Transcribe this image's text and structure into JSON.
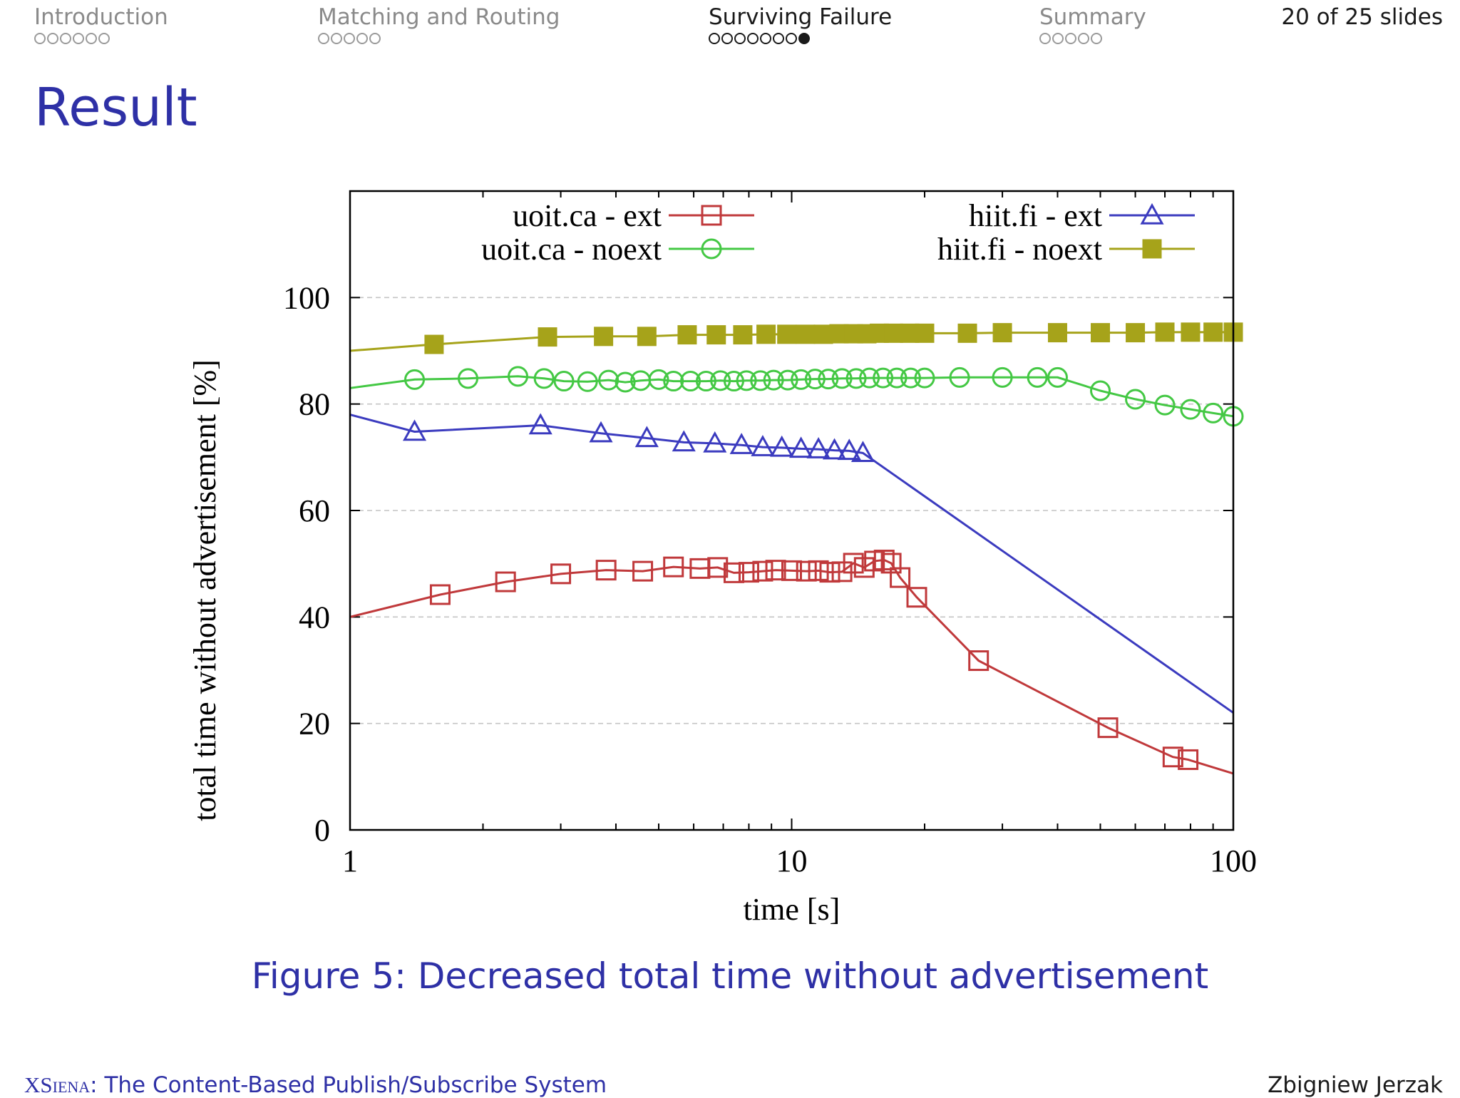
{
  "nav": {
    "sections": [
      {
        "label": "Introduction",
        "dots": 6,
        "current": -1
      },
      {
        "label": "Matching and Routing",
        "dots": 5,
        "current": -1
      },
      {
        "label": "Surviving Failure",
        "dots": 8,
        "current": 7
      },
      {
        "label": "Summary",
        "dots": 5,
        "current": -1
      }
    ],
    "active_index": 2,
    "slide_counter": "20 of 25 slides"
  },
  "slide_title": "Result",
  "caption": "Figure 5: Decreased total time without advertisement",
  "footer": {
    "left_brand": "XSiena",
    "left_rest": ": The Content-Based Publish/Subscribe System",
    "right": "Zbigniew Jerzak"
  },
  "chart_data": {
    "type": "line",
    "title": "",
    "xlabel": "time [s]",
    "ylabel": "total time without advertisement [%]",
    "xscale": "log",
    "xlim": [
      1,
      100
    ],
    "ylim": [
      0,
      120
    ],
    "x_ticks": [
      1,
      10,
      100
    ],
    "y_ticks": [
      0,
      20,
      40,
      60,
      80,
      100
    ],
    "grid": "horizontal dashed",
    "legend": "top, two columns",
    "series": [
      {
        "name": "uoit.ca - ext",
        "color": "#c0393b",
        "marker": "open-square",
        "x": [
          1,
          1.6,
          2.25,
          3.0,
          3.8,
          4.6,
          5.4,
          6.2,
          6.8,
          7.4,
          8.0,
          8.6,
          9.2,
          10.0,
          10.8,
          11.5,
          12.2,
          13.0,
          13.8,
          14.6,
          15.4,
          16.2,
          16.8,
          17.6,
          19.2,
          26.5,
          52,
          73,
          79,
          100
        ],
        "y": [
          40,
          44.2,
          46.6,
          48.1,
          48.8,
          48.6,
          49.4,
          49.1,
          49.3,
          48.3,
          48.4,
          48.6,
          48.8,
          48.7,
          48.6,
          48.7,
          48.4,
          48.5,
          50.1,
          49.3,
          50.5,
          50.7,
          50.1,
          47.4,
          43.7,
          31.8,
          19.2,
          13.7,
          13.2,
          10.6
        ]
      },
      {
        "name": "uoit.ca - noext",
        "color": "#44c844",
        "marker": "open-circle",
        "x": [
          1,
          1.4,
          1.85,
          2.4,
          2.75,
          3.05,
          3.45,
          3.85,
          4.2,
          4.55,
          5.0,
          5.4,
          5.9,
          6.4,
          6.9,
          7.4,
          7.9,
          8.5,
          9.1,
          9.8,
          10.5,
          11.3,
          12.1,
          13.0,
          14.0,
          15.0,
          16.1,
          17.3,
          18.6,
          20.0,
          24.0,
          30.0,
          36.0,
          40.0,
          50.0,
          60.0,
          70.0,
          80.0,
          90.0,
          100.0
        ],
        "y": [
          83,
          84.6,
          84.8,
          85.2,
          84.8,
          84.3,
          84.2,
          84.5,
          84.1,
          84.4,
          84.6,
          84.3,
          84.3,
          84.3,
          84.4,
          84.3,
          84.4,
          84.4,
          84.5,
          84.5,
          84.6,
          84.7,
          84.7,
          84.8,
          84.8,
          84.9,
          84.9,
          84.9,
          84.9,
          84.9,
          85.0,
          85.0,
          85.0,
          85.0,
          82.5,
          80.9,
          79.8,
          79.0,
          78.3,
          77.7
        ]
      },
      {
        "name": "hiit.fi - ext",
        "color": "#3b3bbf",
        "marker": "open-triangle",
        "x": [
          1,
          1.4,
          2.7,
          3.7,
          4.7,
          5.7,
          6.7,
          7.7,
          8.6,
          9.5,
          10.5,
          11.5,
          12.5,
          13.5,
          14.5,
          100
        ],
        "y": [
          78,
          74.8,
          76,
          74.5,
          73.6,
          72.8,
          72.6,
          72.3,
          71.9,
          71.8,
          71.6,
          71.5,
          71.3,
          71.2,
          70.8,
          22
        ]
      },
      {
        "name": "hiit.fi - noext",
        "color": "#a6a31a",
        "marker": "filled-square",
        "x": [
          1,
          1.55,
          2.8,
          3.75,
          4.7,
          5.8,
          6.75,
          7.75,
          8.75,
          9.75,
          10.75,
          11.8,
          12.8,
          13.8,
          14.8,
          15.8,
          17,
          18.5,
          20,
          25,
          30,
          40,
          50,
          60,
          70,
          80,
          90,
          100
        ],
        "y": [
          90,
          91.2,
          92.6,
          92.7,
          92.7,
          93.0,
          93.0,
          93.0,
          93.1,
          93.1,
          93.1,
          93.1,
          93.2,
          93.2,
          93.2,
          93.3,
          93.3,
          93.3,
          93.3,
          93.3,
          93.4,
          93.4,
          93.4,
          93.4,
          93.5,
          93.5,
          93.5,
          93.5
        ]
      }
    ]
  }
}
